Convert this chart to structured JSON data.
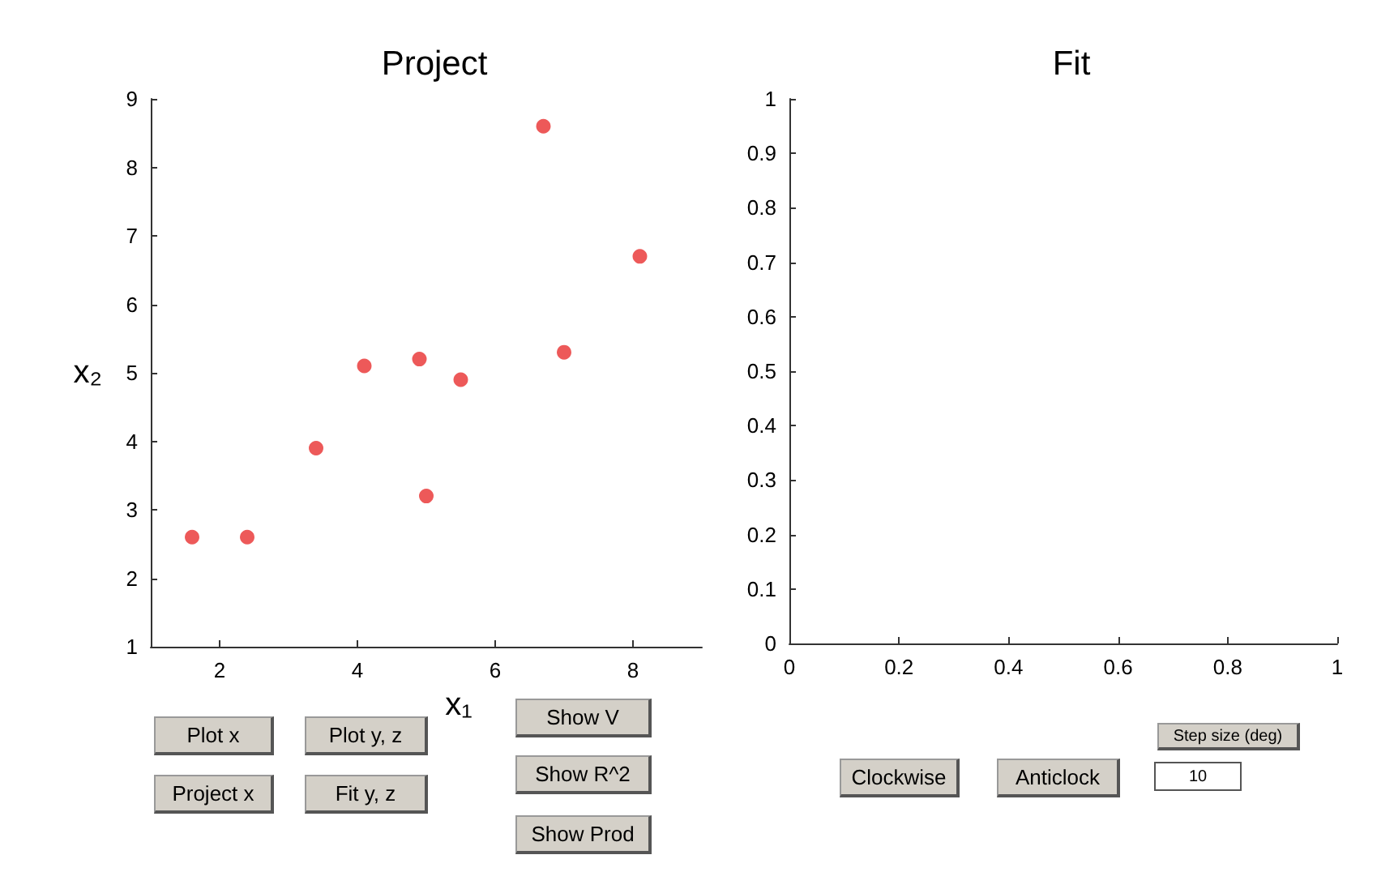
{
  "chart_data": [
    {
      "type": "scatter",
      "title": "Project",
      "xlabel": "x₁",
      "ylabel": "x₂",
      "x": [
        1.6,
        2.4,
        3.4,
        4.1,
        4.9,
        5.0,
        5.5,
        6.7,
        7.0,
        8.1
      ],
      "values": [
        2.6,
        2.6,
        3.9,
        5.1,
        5.2,
        3.2,
        4.9,
        8.6,
        5.3,
        6.7
      ],
      "color": "#e8302f",
      "marker": "circle",
      "xlim": [
        1,
        9
      ],
      "xticks": [
        2,
        4,
        6,
        8
      ],
      "ylim": [
        1,
        9
      ],
      "yticks": [
        1,
        2,
        3,
        4,
        5,
        6,
        7,
        8,
        9
      ],
      "grid": false,
      "annotations": [
        "Plot x",
        "Project x",
        "Plot y, z",
        "Fit y, z",
        "Show V",
        "Show R^2",
        "Show Prod"
      ]
    },
    {
      "type": "scatter",
      "title": "Fit",
      "xlim": [
        0,
        1
      ],
      "xticks": [
        0,
        0.2,
        0.4,
        0.6,
        0.8,
        1
      ],
      "ylim": [
        0,
        1
      ],
      "yticks": [
        0,
        0.1,
        0.2,
        0.3,
        0.4,
        0.5,
        0.6,
        0.7,
        0.8,
        0.9,
        1
      ],
      "grid": false,
      "annotations": [
        "Clockwise",
        "Anticlock",
        "Step size (deg)",
        "10"
      ]
    }
  ]
}
